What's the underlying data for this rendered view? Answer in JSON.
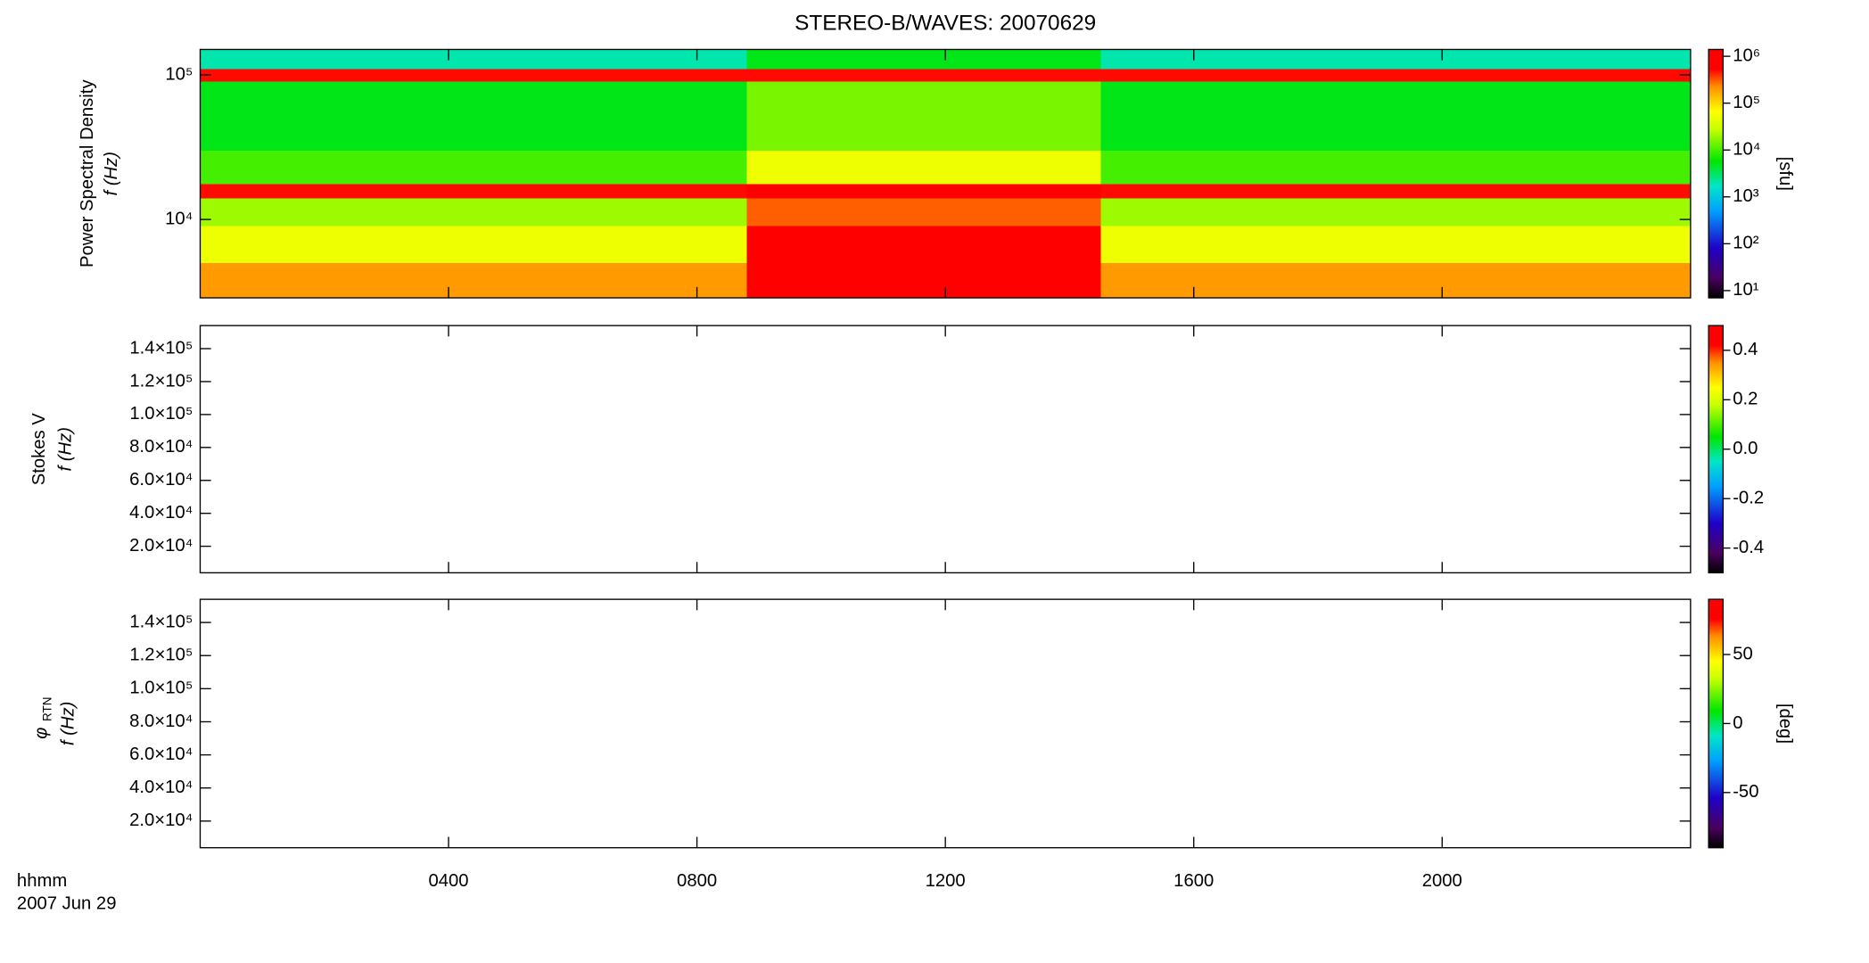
{
  "chart_data": [
    {
      "type": "heatmap",
      "title": "STEREO-B/WAVES: 20070629",
      "ylabel": "Power Spectral Density",
      "ylabel2": "f (Hz)",
      "ylog": true,
      "ylim": [
        2870,
        150000
      ],
      "yticks": [
        {
          "value": 10000,
          "label": "10⁴"
        },
        {
          "value": 100000,
          "label": "10⁵"
        }
      ],
      "x": [
        0,
        8.8,
        14.5,
        24
      ],
      "y": [
        2870,
        5000,
        9000,
        14000,
        17500,
        30000,
        90000,
        110000,
        150000
      ],
      "values": [
        [
          200000,
          50000,
          20000,
          500000,
          10000,
          5000,
          500000,
          2000
        ],
        [
          1000000,
          600000,
          300000,
          900000,
          50000,
          15000,
          500000,
          5000
        ],
        [
          200000,
          50000,
          20000,
          500000,
          10000,
          5000,
          500000,
          2000
        ]
      ],
      "clog": true,
      "clim": [
        7,
        1400000
      ],
      "cticks": [
        {
          "value": 10,
          "label": "10¹"
        },
        {
          "value": 100,
          "label": "10²"
        },
        {
          "value": 1000,
          "label": "10³"
        },
        {
          "value": 10000,
          "label": "10⁴"
        },
        {
          "value": 100000,
          "label": "10⁵"
        },
        {
          "value": 1000000,
          "label": "10⁶"
        }
      ],
      "clabel": "[sfu]"
    },
    {
      "type": "heatmap",
      "ylabel": "Stokes V",
      "ylabel2": "f (Hz)",
      "ylim": [
        3900,
        154000
      ],
      "yticks": [
        {
          "value": 20000,
          "label": "2.0×10⁴"
        },
        {
          "value": 40000,
          "label": "4.0×10⁴"
        },
        {
          "value": 60000,
          "label": "6.0×10⁴"
        },
        {
          "value": 80000,
          "label": "8.0×10⁴"
        },
        {
          "value": 100000,
          "label": "1.0×10⁵"
        },
        {
          "value": 120000,
          "label": "1.2×10⁵"
        },
        {
          "value": 140000,
          "label": "1.4×10⁵"
        }
      ],
      "clim": [
        -0.5,
        0.5
      ],
      "cticks": [
        -0.4,
        -0.2,
        {
          "value": 0,
          "label": "0.0"
        },
        0.2,
        0.4
      ]
    },
    {
      "type": "heatmap",
      "ylabel": "φ",
      "ylabel_sub": "RTN",
      "ylabel2": "f (Hz)",
      "ylim": [
        3900,
        154000
      ],
      "yticks": [
        {
          "value": 20000,
          "label": "2.0×10⁴"
        },
        {
          "value": 40000,
          "label": "4.0×10⁴"
        },
        {
          "value": 60000,
          "label": "6.0×10⁴"
        },
        {
          "value": 80000,
          "label": "8.0×10⁴"
        },
        {
          "value": 100000,
          "label": "1.0×10⁵"
        },
        {
          "value": 120000,
          "label": "1.2×10⁵"
        },
        {
          "value": 140000,
          "label": "1.4×10⁵"
        }
      ],
      "clim": [
        -90,
        90
      ],
      "cticks": [
        -50,
        0,
        50
      ],
      "clabel": "[deg]",
      "xlim": [
        0,
        24
      ],
      "xticks": [
        {
          "value": 4,
          "label": "0400"
        },
        {
          "value": 8,
          "label": "0800"
        },
        {
          "value": 12,
          "label": "1200"
        },
        {
          "value": 16,
          "label": "1600"
        },
        {
          "value": 20,
          "label": "2000"
        }
      ],
      "xlabel": "hhmm",
      "date": "2007 Jun 29"
    }
  ]
}
